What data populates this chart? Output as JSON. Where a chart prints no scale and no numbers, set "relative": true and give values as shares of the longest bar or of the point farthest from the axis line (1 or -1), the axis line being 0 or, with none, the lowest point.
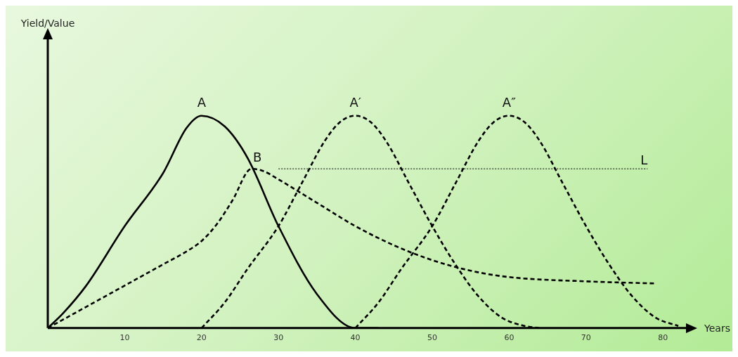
{
  "chart_data": {
    "type": "line",
    "relative": true,
    "xlabel": "Years",
    "annotations": [
      "Yield/Value"
    ],
    "xlim": [
      0,
      83
    ],
    "xticks": [
      10,
      20,
      30,
      40,
      50,
      60,
      70,
      80
    ],
    "marker": "none",
    "legend": false,
    "grid": false,
    "series": [
      {
        "name": "A",
        "color": "#000000",
        "line_style": "solid",
        "x": [
          0,
          2,
          5,
          10,
          15,
          18,
          20,
          23,
          26,
          30,
          35,
          40,
          43
        ],
        "values": [
          0,
          0.07,
          0.2,
          0.48,
          0.73,
          0.94,
          1,
          0.95,
          0.8,
          0.48,
          0.16,
          0,
          0
        ]
      },
      {
        "name": "A′",
        "color": "#000000",
        "line_style": "dashed",
        "x": [
          20,
          23,
          26,
          30,
          33,
          36,
          38,
          40,
          42,
          44,
          47,
          50,
          53,
          56,
          59,
          62,
          64
        ],
        "values": [
          0,
          0.12,
          0.28,
          0.48,
          0.68,
          0.88,
          0.97,
          1,
          0.97,
          0.88,
          0.68,
          0.48,
          0.3,
          0.15,
          0.05,
          0.01,
          0
        ]
      },
      {
        "name": "A″",
        "color": "#000000",
        "line_style": "dashed",
        "x": [
          40,
          43,
          46,
          50,
          53,
          56,
          58,
          60,
          62,
          64,
          67,
          70,
          73,
          76,
          79,
          82
        ],
        "values": [
          0,
          0.12,
          0.28,
          0.48,
          0.68,
          0.88,
          0.97,
          1,
          0.97,
          0.88,
          0.68,
          0.48,
          0.3,
          0.15,
          0.05,
          0.01
        ]
      },
      {
        "name": "B",
        "color": "#000000",
        "line_style": "dashed",
        "x": [
          0,
          5,
          10,
          15,
          18,
          20,
          22,
          24,
          26.5,
          28,
          30,
          35,
          40,
          45,
          50,
          55,
          60,
          70,
          79
        ],
        "values": [
          0,
          0.1,
          0.2,
          0.3,
          0.36,
          0.41,
          0.49,
          0.6,
          0.75,
          0.74,
          0.7,
          0.59,
          0.48,
          0.39,
          0.32,
          0.27,
          0.24,
          0.22,
          0.21
        ]
      },
      {
        "name": "L",
        "color": "#000000",
        "line_style": "dotted",
        "x": [
          30,
          78
        ],
        "values": [
          0.75,
          0.75
        ]
      }
    ]
  }
}
